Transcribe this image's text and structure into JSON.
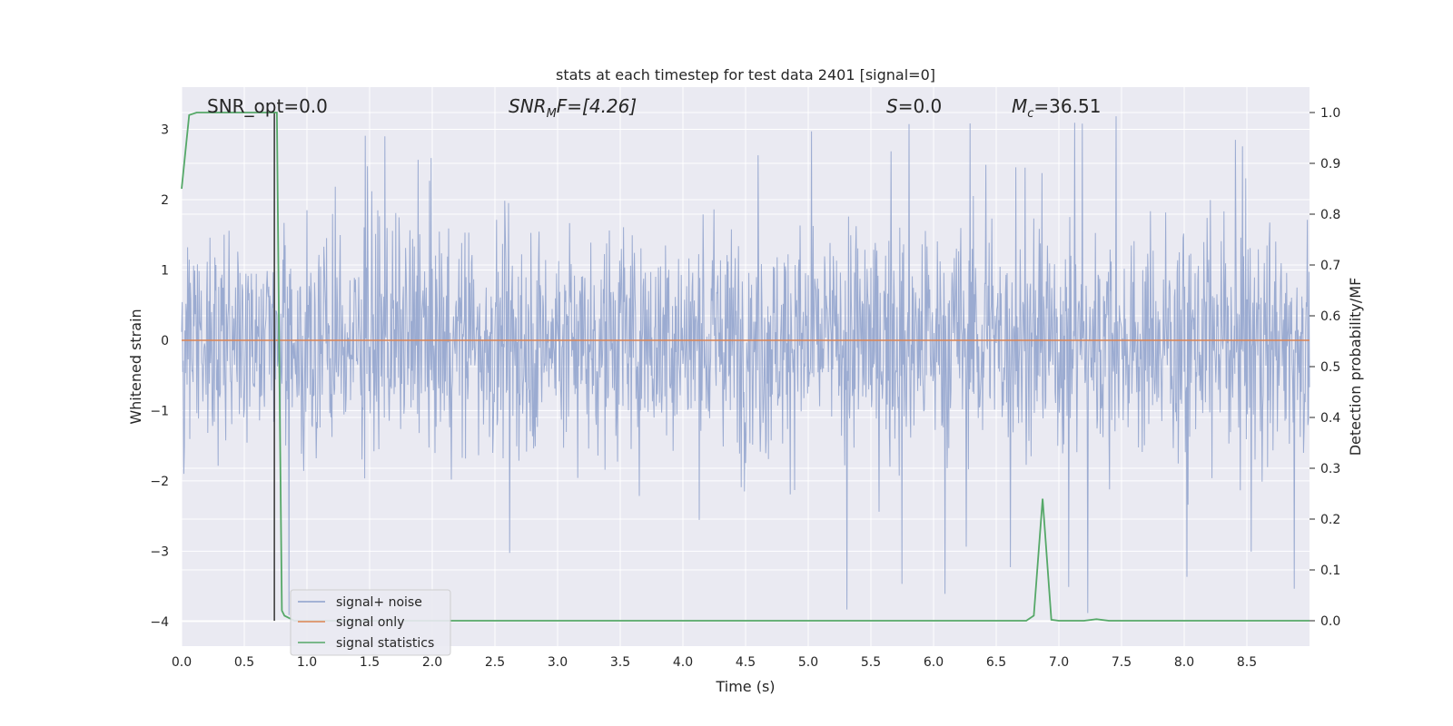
{
  "chart_data": {
    "type": "line",
    "title": "stats at each timestep for test data 2401 [signal=0]",
    "xlabel": "Time (s)",
    "ylabel_left": "Whitened strain",
    "ylabel_right": "Detection probability/MF",
    "xlim": [
      0.0,
      9.0
    ],
    "ylim_left": [
      -4.35,
      3.6
    ],
    "ylim_right": [
      -0.05,
      1.05
    ],
    "x_ticks": [
      "0.0",
      "0.5",
      "1.0",
      "1.5",
      "2.0",
      "2.5",
      "3.0",
      "3.5",
      "4.0",
      "4.5",
      "5.0",
      "5.5",
      "6.0",
      "6.5",
      "7.0",
      "7.5",
      "8.0",
      "8.5"
    ],
    "y_ticks_left": [
      "−4",
      "−3",
      "−2",
      "−1",
      "0",
      "1",
      "2",
      "3"
    ],
    "y_ticks_right": [
      "0.0",
      "0.1",
      "0.2",
      "0.3",
      "0.4",
      "0.5",
      "0.6",
      "0.7",
      "0.8",
      "0.9",
      "1.0"
    ],
    "grid": true,
    "annotations": {
      "snr_opt": "SNR_opt=0.0",
      "snr_mf_sym": "SNR",
      "snr_mf_sub": "M",
      "snr_mf_rest": "F=[4.26]",
      "s_sym": "S",
      "s_rest": "=0.0",
      "mc_sym": "M",
      "mc_sub": "c",
      "mc_rest": "=36.51"
    },
    "legend": {
      "placement": "lower-left",
      "entries": [
        "signal+ noise",
        "signal only",
        "signal statistics"
      ]
    },
    "colors": {
      "noise": "#8da0cb",
      "signal": "#dd8452",
      "statistics": "#55a868",
      "background": "#eaeaf2",
      "marker": "#333333"
    },
    "series": [
      {
        "name": "signal+ noise",
        "noise_envelope": {
          "typical_min": -1.9,
          "typical_max": 1.9,
          "peak_min": -4.0,
          "peak_max": 3.25
        }
      },
      {
        "name": "signal only",
        "x": [
          0.0,
          9.0
        ],
        "y": [
          0.0,
          0.0
        ]
      },
      {
        "name": "signal statistics",
        "x": [
          0.0,
          0.06,
          0.12,
          0.2,
          0.3,
          0.4,
          0.5,
          0.6,
          0.7,
          0.74,
          0.76,
          0.78,
          0.8,
          0.82,
          0.9,
          1.5,
          2.5,
          3.5,
          4.5,
          5.5,
          6.5,
          6.74,
          6.8,
          6.87,
          6.94,
          7.0,
          7.2,
          7.3,
          7.4,
          7.6,
          8.0,
          9.0
        ],
        "y": [
          0.85,
          0.995,
          1.0,
          1.0,
          1.0,
          1.0,
          1.0,
          1.0,
          1.0,
          1.0,
          1.0,
          0.5,
          0.02,
          0.01,
          0.0,
          0.0,
          0.0,
          0.0,
          0.0,
          0.0,
          0.0,
          0.0,
          0.01,
          0.24,
          0.002,
          0.0,
          0.0,
          0.003,
          0.0,
          0.0,
          0.0,
          0.0
        ]
      }
    ],
    "vertical_marker_x": 0.74
  }
}
